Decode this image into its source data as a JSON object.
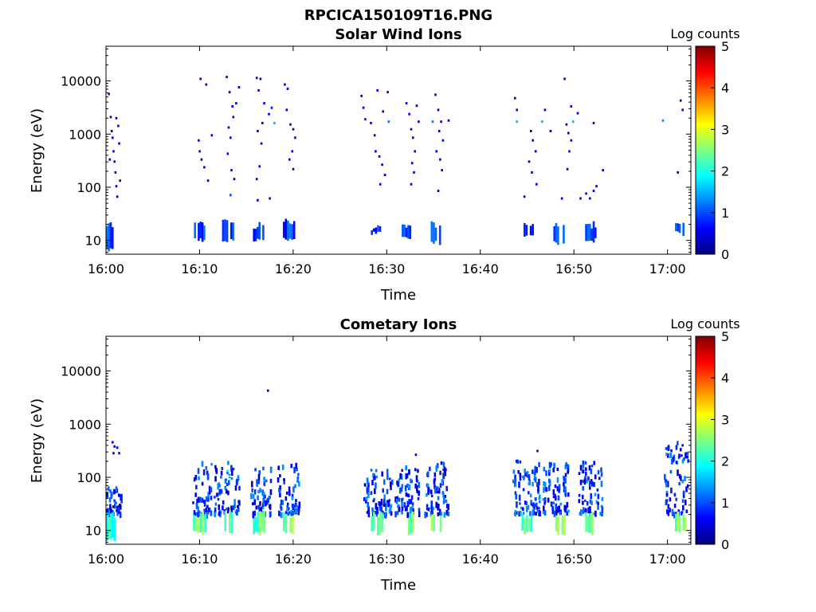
{
  "figure_title": "RPCICA150109T16.PNG",
  "colors": {
    "colormap": [
      "#00007f",
      "#0000ff",
      "#007fff",
      "#00ffff",
      "#7fff7f",
      "#ffff00",
      "#ff7f00",
      "#ff0000",
      "#7f0000"
    ]
  },
  "chart_data": [
    {
      "type": "heatmap",
      "title": "Solar Wind Ions",
      "xlabel": "Time",
      "ylabel": "Energy (eV)",
      "xlim_minutes_after_16_00": [
        0,
        62.5
      ],
      "x_tick_labels": [
        "16:00",
        "16:10",
        "16:20",
        "16:30",
        "16:40",
        "16:50",
        "17:00"
      ],
      "x_tick_minutes": [
        0,
        10,
        20,
        30,
        40,
        50,
        60
      ],
      "ylim_ev": [
        5.5,
        45000
      ],
      "y_scale": "log",
      "y_tick_labels": [
        "10",
        "100",
        "1000",
        "10000"
      ],
      "y_tick_values": [
        10,
        100,
        1000,
        10000
      ],
      "colorbar": {
        "label": "Log counts",
        "range": [
          0,
          5
        ],
        "ticks": [
          "0",
          "1",
          "2",
          "3",
          "4",
          "5"
        ]
      },
      "low_energy_bursts": [
        {
          "t_start": 0.0,
          "t_end": 0.6,
          "e_min": 6,
          "e_max": 22,
          "level": 0.9
        },
        {
          "t_start": 9.4,
          "t_end": 10.4,
          "e_min": 9,
          "e_max": 22,
          "level": 0.9
        },
        {
          "t_start": 12.4,
          "t_end": 13.5,
          "e_min": 9,
          "e_max": 25,
          "level": 0.9
        },
        {
          "t_start": 15.7,
          "t_end": 16.7,
          "e_min": 9,
          "e_max": 22,
          "level": 0.9
        },
        {
          "t_start": 18.9,
          "t_end": 20.0,
          "e_min": 9,
          "e_max": 25,
          "level": 0.9
        },
        {
          "t_start": 28.3,
          "t_end": 29.4,
          "e_min": 12,
          "e_max": 20,
          "level": 0.9
        },
        {
          "t_start": 31.6,
          "t_end": 32.6,
          "e_min": 10,
          "e_max": 22,
          "level": 0.9
        },
        {
          "t_start": 34.7,
          "t_end": 35.8,
          "e_min": 8,
          "e_max": 22,
          "level": 1.2
        },
        {
          "t_start": 44.4,
          "t_end": 45.5,
          "e_min": 10,
          "e_max": 22,
          "level": 0.9
        },
        {
          "t_start": 47.8,
          "t_end": 48.8,
          "e_min": 8,
          "e_max": 22,
          "level": 1.0
        },
        {
          "t_start": 51.2,
          "t_end": 52.2,
          "e_min": 9,
          "e_max": 22,
          "level": 0.9
        },
        {
          "t_start": 60.8,
          "t_end": 61.6,
          "e_min": 12,
          "e_max": 22,
          "level": 1.0
        }
      ],
      "points": [
        [
          0.2,
          6000,
          0.5
        ],
        [
          0.4,
          2200,
          0.5
        ],
        [
          0.6,
          900,
          0.5
        ],
        [
          0.7,
          500,
          0.5
        ],
        [
          0.8,
          320,
          0.5
        ],
        [
          0.9,
          200,
          0.5
        ],
        [
          1.0,
          110,
          0.5
        ],
        [
          1.1,
          70,
          0.5
        ],
        [
          1.2,
          1500,
          0.5
        ],
        [
          1.3,
          700,
          0.5
        ],
        [
          0.5,
          1200,
          0.5
        ],
        [
          0.3,
          350,
          0.5
        ],
        [
          1.0,
          2100,
          0.5
        ],
        [
          1.4,
          140,
          0.5
        ],
        [
          10.0,
          11500,
          0.5
        ],
        [
          10.6,
          9000,
          0.5
        ],
        [
          9.8,
          800,
          0.5
        ],
        [
          10.1,
          350,
          0.5
        ],
        [
          10.4,
          250,
          0.5
        ],
        [
          10.8,
          140,
          0.5
        ],
        [
          11.2,
          1000,
          0.5
        ],
        [
          9.9,
          500,
          0.5
        ],
        [
          12.8,
          12500,
          0.5
        ],
        [
          13.1,
          6500,
          0.5
        ],
        [
          13.4,
          3500,
          0.5
        ],
        [
          13.0,
          1400,
          0.5
        ],
        [
          13.2,
          900,
          0.5
        ],
        [
          12.9,
          450,
          0.5
        ],
        [
          13.3,
          220,
          0.5
        ],
        [
          13.6,
          150,
          0.5
        ],
        [
          13.5,
          2200,
          0.5
        ],
        [
          13.8,
          4000,
          0.5
        ],
        [
          14.1,
          8000,
          0.5
        ],
        [
          13.2,
          75,
          1.0
        ],
        [
          16.0,
          12000,
          0.5
        ],
        [
          16.4,
          11500,
          0.5
        ],
        [
          16.2,
          7000,
          0.5
        ],
        [
          16.6,
          1700,
          0.5
        ],
        [
          16.1,
          1200,
          0.5
        ],
        [
          16.5,
          700,
          0.5
        ],
        [
          16.8,
          4000,
          0.5
        ],
        [
          17.3,
          2500,
          0.5
        ],
        [
          17.6,
          3300,
          0.7
        ],
        [
          17.9,
          1700,
          1.5
        ],
        [
          16.3,
          260,
          0.5
        ],
        [
          16.0,
          150,
          0.5
        ],
        [
          16.1,
          60,
          0.5
        ],
        [
          17.4,
          65,
          0.5
        ],
        [
          19.0,
          9000,
          0.5
        ],
        [
          19.3,
          7500,
          0.5
        ],
        [
          19.6,
          1600,
          0.5
        ],
        [
          19.9,
          1300,
          0.5
        ],
        [
          20.1,
          900,
          0.5
        ],
        [
          19.8,
          500,
          0.5
        ],
        [
          19.5,
          350,
          0.5
        ],
        [
          19.9,
          230,
          0.5
        ],
        [
          19.2,
          3000,
          0.5
        ],
        [
          27.2,
          5500,
          0.5
        ],
        [
          27.4,
          3300,
          0.5
        ],
        [
          27.6,
          2000,
          0.7
        ],
        [
          28.2,
          1700,
          0.5
        ],
        [
          28.6,
          1000,
          0.5
        ],
        [
          28.9,
          7000,
          0.5
        ],
        [
          29.1,
          400,
          0.5
        ],
        [
          29.4,
          280,
          0.5
        ],
        [
          29.7,
          180,
          0.5
        ],
        [
          29.5,
          2800,
          0.5
        ],
        [
          28.7,
          500,
          0.5
        ],
        [
          29.2,
          120,
          0.5
        ],
        [
          30.0,
          6500,
          0.5
        ],
        [
          30.1,
          1800,
          1.2
        ],
        [
          32.0,
          4000,
          0.5
        ],
        [
          32.3,
          2500,
          0.5
        ],
        [
          32.5,
          1300,
          0.5
        ],
        [
          32.7,
          900,
          0.5
        ],
        [
          32.9,
          500,
          0.5
        ],
        [
          33.1,
          3600,
          0.5
        ],
        [
          33.3,
          1800,
          0.5
        ],
        [
          32.6,
          300,
          0.5
        ],
        [
          32.8,
          200,
          0.5
        ],
        [
          32.5,
          120,
          0.5
        ],
        [
          35.1,
          5800,
          0.5
        ],
        [
          35.4,
          3000,
          0.5
        ],
        [
          35.7,
          1800,
          0.5
        ],
        [
          35.5,
          1200,
          0.5
        ],
        [
          35.9,
          800,
          0.5
        ],
        [
          35.2,
          500,
          0.5
        ],
        [
          35.6,
          350,
          0.5
        ],
        [
          35.8,
          220,
          0.5
        ],
        [
          35.4,
          90,
          0.5
        ],
        [
          36.5,
          1900,
          0.5
        ],
        [
          34.8,
          1800,
          1.2
        ],
        [
          43.6,
          5000,
          0.5
        ],
        [
          43.8,
          3000,
          0.5
        ],
        [
          43.8,
          1800,
          1.5
        ],
        [
          45.3,
          1200,
          0.5
        ],
        [
          45.5,
          800,
          0.5
        ],
        [
          45.8,
          500,
          0.5
        ],
        [
          45.1,
          320,
          0.5
        ],
        [
          45.4,
          200,
          0.5
        ],
        [
          45.9,
          120,
          0.5
        ],
        [
          44.6,
          70,
          0.5
        ],
        [
          46.8,
          3000,
          0.5
        ],
        [
          46.5,
          1800,
          1.5
        ],
        [
          47.4,
          1200,
          0.5
        ],
        [
          48.9,
          11500,
          0.5
        ],
        [
          49.1,
          1600,
          0.5
        ],
        [
          49.3,
          1100,
          0.5
        ],
        [
          49.6,
          800,
          0.5
        ],
        [
          49.4,
          500,
          0.5
        ],
        [
          49.2,
          230,
          0.5
        ],
        [
          48.6,
          65,
          0.5
        ],
        [
          49.8,
          1800,
          1.5
        ],
        [
          49.6,
          3500,
          0.5
        ],
        [
          50.3,
          2600,
          0.5
        ],
        [
          51.6,
          65,
          0.5
        ],
        [
          51.2,
          80,
          0.5
        ],
        [
          52.0,
          90,
          0.5
        ],
        [
          52.3,
          110,
          0.5
        ],
        [
          52.0,
          1700,
          0.5
        ],
        [
          53.0,
          220,
          0.5
        ],
        [
          50.6,
          65,
          0.5
        ],
        [
          59.4,
          1900,
          1.3
        ],
        [
          61.0,
          200,
          0.5
        ],
        [
          61.3,
          4500,
          0.5
        ],
        [
          61.5,
          3000,
          0.5
        ]
      ]
    },
    {
      "type": "heatmap",
      "title": "Cometary Ions",
      "xlabel": "Time",
      "ylabel": "Energy (eV)",
      "xlim_minutes_after_16_00": [
        0,
        62.5
      ],
      "x_tick_labels": [
        "16:00",
        "16:10",
        "16:20",
        "16:30",
        "16:40",
        "16:50",
        "17:00"
      ],
      "x_tick_minutes": [
        0,
        10,
        20,
        30,
        40,
        50,
        60
      ],
      "ylim_ev": [
        5.5,
        45000
      ],
      "y_scale": "log",
      "y_tick_labels": [
        "10",
        "100",
        "1000",
        "10000"
      ],
      "y_tick_values": [
        10,
        100,
        1000,
        10000
      ],
      "colorbar": {
        "label": "Log counts",
        "range": [
          0,
          5
        ],
        "ticks": [
          "0",
          "1",
          "2",
          "3",
          "4",
          "5"
        ]
      },
      "low_energy_bursts": [
        {
          "t_start": 0.0,
          "t_end": 0.8,
          "e_min": 6,
          "e_max": 22,
          "level": 2.0
        },
        {
          "t_start": 9.3,
          "t_end": 10.5,
          "e_min": 8,
          "e_max": 22,
          "level": 2.4
        },
        {
          "t_start": 12.4,
          "t_end": 13.6,
          "e_min": 8,
          "e_max": 22,
          "level": 2.4
        },
        {
          "t_start": 15.7,
          "t_end": 16.8,
          "e_min": 8,
          "e_max": 22,
          "level": 2.3
        },
        {
          "t_start": 18.9,
          "t_end": 20.1,
          "e_min": 8,
          "e_max": 22,
          "level": 2.5
        },
        {
          "t_start": 28.3,
          "t_end": 29.4,
          "e_min": 8,
          "e_max": 22,
          "level": 2.2
        },
        {
          "t_start": 31.6,
          "t_end": 32.7,
          "e_min": 8,
          "e_max": 22,
          "level": 2.4
        },
        {
          "t_start": 34.7,
          "t_end": 35.9,
          "e_min": 8,
          "e_max": 22,
          "level": 2.5
        },
        {
          "t_start": 44.4,
          "t_end": 45.6,
          "e_min": 8,
          "e_max": 22,
          "level": 2.3
        },
        {
          "t_start": 47.8,
          "t_end": 48.9,
          "e_min": 8,
          "e_max": 22,
          "level": 2.5
        },
        {
          "t_start": 51.2,
          "t_end": 52.3,
          "e_min": 8,
          "e_max": 22,
          "level": 2.4
        },
        {
          "t_start": 60.8,
          "t_end": 61.8,
          "e_min": 8,
          "e_max": 22,
          "level": 2.5
        }
      ],
      "diffuse_regions": [
        {
          "t_start": 0.0,
          "t_end": 1.6,
          "e_min": 22,
          "e_max": 70
        },
        {
          "t_start": 9.2,
          "t_end": 11.2,
          "e_min": 22,
          "e_max": 210
        },
        {
          "t_start": 11.5,
          "t_end": 14.2,
          "e_min": 22,
          "e_max": 230
        },
        {
          "t_start": 15.4,
          "t_end": 17.6,
          "e_min": 22,
          "e_max": 180
        },
        {
          "t_start": 18.2,
          "t_end": 20.6,
          "e_min": 22,
          "e_max": 200
        },
        {
          "t_start": 27.4,
          "t_end": 30.5,
          "e_min": 22,
          "e_max": 160
        },
        {
          "t_start": 30.8,
          "t_end": 33.4,
          "e_min": 22,
          "e_max": 170
        },
        {
          "t_start": 34.0,
          "t_end": 36.6,
          "e_min": 22,
          "e_max": 200
        },
        {
          "t_start": 43.4,
          "t_end": 46.3,
          "e_min": 22,
          "e_max": 230
        },
        {
          "t_start": 46.6,
          "t_end": 49.4,
          "e_min": 22,
          "e_max": 220
        },
        {
          "t_start": 50.4,
          "t_end": 53.0,
          "e_min": 22,
          "e_max": 210
        },
        {
          "t_start": 59.6,
          "t_end": 62.2,
          "e_min": 22,
          "e_max": 500
        }
      ],
      "points": [
        [
          0.6,
          480,
          0.5
        ],
        [
          0.8,
          400,
          0.5
        ],
        [
          0.7,
          300,
          0.5
        ],
        [
          1.1,
          380,
          0.5
        ],
        [
          1.3,
          300,
          0.5
        ],
        [
          17.2,
          4500,
          0.5
        ],
        [
          33.0,
          280,
          0.5
        ],
        [
          46.0,
          330,
          0.5
        ],
        [
          61.5,
          420,
          0.5
        ],
        [
          61.4,
          270,
          0.5
        ],
        [
          12.9,
          140,
          2.0
        ],
        [
          13.1,
          110,
          2.0
        ]
      ]
    }
  ]
}
